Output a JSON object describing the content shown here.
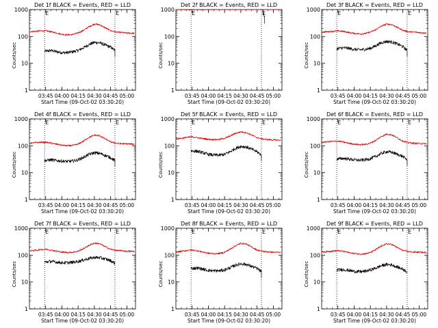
{
  "figure": {
    "ylabel": "Counts/sec",
    "xlabel": "Start Time (09-Oct-02 03:30:20)",
    "y_ticks": [
      "1",
      "10",
      "100",
      "1000"
    ],
    "x_ticks": [
      "03:45",
      "04:00",
      "04:15",
      "04:30",
      "04:45",
      "05:00"
    ],
    "marker_labels": [
      "E",
      "E"
    ],
    "colors": {
      "events": "#000000",
      "lld": "#e00000"
    }
  },
  "chart_data": [
    {
      "type": "line",
      "title": "Det 1f BLACK = Events, RED = LLD",
      "ylabel": "Counts/sec",
      "xlabel": "Start Time (09-Oct-02 03:30:20)",
      "y_scale": "log",
      "ylim": [
        1,
        1000
      ],
      "x_ticks": [
        "03:45",
        "04:00",
        "04:15",
        "04:30",
        "04:45",
        "05:00"
      ],
      "markers": [
        "03:44",
        "04:49"
      ],
      "series": [
        {
          "name": "Events",
          "color": "#000000",
          "x": [
            "03:44",
            "03:50",
            "03:55",
            "04:00",
            "04:05",
            "04:10",
            "04:15",
            "04:20",
            "04:25",
            "04:30",
            "04:35",
            "04:40",
            "04:45",
            "04:49"
          ],
          "values": [
            28,
            30,
            27,
            25,
            25,
            27,
            30,
            38,
            50,
            60,
            58,
            48,
            40,
            30
          ]
        },
        {
          "name": "LLD",
          "color": "#e00000",
          "x": [
            "03:30",
            "03:35",
            "03:40",
            "03:45",
            "03:50",
            "03:55",
            "04:00",
            "04:05",
            "04:10",
            "04:15",
            "04:20",
            "04:25",
            "04:30",
            "04:35",
            "04:40",
            "04:45",
            "04:50",
            "04:55",
            "05:00",
            "05:07"
          ],
          "values": [
            150,
            155,
            160,
            162,
            150,
            135,
            120,
            115,
            118,
            135,
            170,
            230,
            290,
            270,
            210,
            165,
            145,
            140,
            135,
            130
          ]
        }
      ]
    },
    {
      "type": "line",
      "title": "Det 2f BLACK = Events, RED = LLD",
      "ylabel": "Counts/sec",
      "xlabel": "Start Time (09-Oct-02 03:30:20)",
      "y_scale": "log",
      "ylim": [
        1,
        1000
      ],
      "x_ticks": [
        "03:45",
        "04:00",
        "04:15",
        "04:30",
        "04:45",
        "05:00"
      ],
      "markers": [
        "03:44",
        "04:49"
      ],
      "series": [
        {
          "name": "Events",
          "color": "#000000",
          "x": [
            "03:30",
            "03:40",
            "03:50",
            "04:00",
            "04:10",
            "04:20",
            "04:30",
            "04:40",
            "04:45",
            "04:50",
            "04:52"
          ],
          "values": [
            1100,
            1080,
            1100,
            1120,
            1140,
            1160,
            1180,
            1200,
            1180,
            1150,
            500
          ]
        },
        {
          "name": "LLD",
          "color": "#e00000",
          "x": [
            "03:30",
            "03:40",
            "03:50",
            "04:00",
            "04:10",
            "04:20",
            "04:30",
            "04:40",
            "04:50",
            "05:00",
            "05:07"
          ],
          "values": [
            1150,
            1150,
            1160,
            1170,
            1180,
            1190,
            1200,
            1200,
            1200,
            1200,
            1200
          ]
        }
      ]
    },
    {
      "type": "line",
      "title": "Det 3f BLACK = Events, RED = LLD",
      "ylabel": "Counts/sec",
      "xlabel": "Start Time (09-Oct-02 03:30:20)",
      "y_scale": "log",
      "ylim": [
        1,
        1000
      ],
      "x_ticks": [
        "03:45",
        "04:00",
        "04:15",
        "04:30",
        "04:45",
        "05:00"
      ],
      "markers": [
        "03:44",
        "04:49"
      ],
      "series": [
        {
          "name": "Events",
          "color": "#000000",
          "x": [
            "03:44",
            "03:50",
            "03:55",
            "04:00",
            "04:05",
            "04:10",
            "04:15",
            "04:20",
            "04:25",
            "04:30",
            "04:35",
            "04:40",
            "04:45",
            "04:49"
          ],
          "values": [
            35,
            38,
            36,
            33,
            32,
            33,
            36,
            45,
            58,
            65,
            62,
            52,
            42,
            30
          ]
        },
        {
          "name": "LLD",
          "color": "#e00000",
          "x": [
            "03:30",
            "03:35",
            "03:40",
            "03:45",
            "03:50",
            "03:55",
            "04:00",
            "04:05",
            "04:10",
            "04:15",
            "04:20",
            "04:25",
            "04:30",
            "04:35",
            "04:40",
            "04:45",
            "04:50",
            "04:55",
            "05:00",
            "05:07"
          ],
          "values": [
            145,
            150,
            155,
            160,
            155,
            140,
            130,
            125,
            128,
            145,
            180,
            240,
            290,
            275,
            215,
            170,
            150,
            145,
            140,
            135
          ]
        }
      ]
    },
    {
      "type": "line",
      "title": "Det 4f BLACK = Events, RED = LLD",
      "ylabel": "Counts/sec",
      "xlabel": "Start Time (09-Oct-02 03:30:20)",
      "y_scale": "log",
      "ylim": [
        1,
        1000
      ],
      "x_ticks": [
        "03:45",
        "04:00",
        "04:15",
        "04:30",
        "04:45",
        "05:00"
      ],
      "markers": [
        "03:44",
        "04:49"
      ],
      "series": [
        {
          "name": "Events",
          "color": "#000000",
          "x": [
            "03:44",
            "03:50",
            "03:55",
            "04:00",
            "04:05",
            "04:10",
            "04:15",
            "04:20",
            "04:25",
            "04:30",
            "04:35",
            "04:40",
            "04:45",
            "04:49"
          ],
          "values": [
            28,
            30,
            28,
            27,
            26,
            27,
            30,
            37,
            48,
            55,
            52,
            44,
            36,
            28
          ]
        },
        {
          "name": "LLD",
          "color": "#e00000",
          "x": [
            "03:30",
            "03:35",
            "03:40",
            "03:45",
            "03:50",
            "03:55",
            "04:00",
            "04:05",
            "04:10",
            "04:15",
            "04:20",
            "04:25",
            "04:30",
            "04:35",
            "04:40",
            "04:45",
            "04:50",
            "04:55",
            "05:00",
            "05:07"
          ],
          "values": [
            125,
            130,
            135,
            135,
            125,
            115,
            105,
            100,
            103,
            115,
            150,
            205,
            250,
            235,
            180,
            140,
            125,
            120,
            118,
            115
          ]
        }
      ]
    },
    {
      "type": "line",
      "title": "Det 5f BLACK = Events, RED = LLD",
      "ylabel": "Counts/sec",
      "xlabel": "Start Time (09-Oct-02 03:30:20)",
      "y_scale": "log",
      "ylim": [
        1,
        1000
      ],
      "x_ticks": [
        "03:45",
        "04:00",
        "04:15",
        "04:30",
        "04:45",
        "05:00"
      ],
      "markers": [
        "03:44",
        "04:49"
      ],
      "series": [
        {
          "name": "Events",
          "color": "#000000",
          "x": [
            "03:44",
            "03:50",
            "03:55",
            "04:00",
            "04:05",
            "04:10",
            "04:15",
            "04:20",
            "04:25",
            "04:30",
            "04:35",
            "04:40",
            "04:45",
            "04:49"
          ],
          "values": [
            65,
            62,
            55,
            48,
            45,
            45,
            48,
            60,
            80,
            95,
            90,
            75,
            60,
            45
          ]
        },
        {
          "name": "LLD",
          "color": "#e00000",
          "x": [
            "03:30",
            "03:35",
            "03:40",
            "03:45",
            "03:50",
            "03:55",
            "04:00",
            "04:05",
            "04:10",
            "04:15",
            "04:20",
            "04:25",
            "04:30",
            "04:35",
            "04:40",
            "04:45",
            "04:50",
            "04:55",
            "05:00",
            "05:07"
          ],
          "values": [
            180,
            190,
            205,
            215,
            200,
            185,
            175,
            170,
            172,
            190,
            230,
            290,
            330,
            310,
            250,
            200,
            180,
            170,
            165,
            160
          ]
        }
      ]
    },
    {
      "type": "line",
      "title": "Det 6f BLACK = Events, RED = LLD",
      "ylabel": "Counts/sec",
      "xlabel": "Start Time (09-Oct-02 03:30:20)",
      "y_scale": "log",
      "ylim": [
        1,
        1000
      ],
      "x_ticks": [
        "03:45",
        "04:00",
        "04:15",
        "04:30",
        "04:45",
        "05:00"
      ],
      "markers": [
        "03:44",
        "04:49"
      ],
      "series": [
        {
          "name": "Events",
          "color": "#000000",
          "x": [
            "03:44",
            "03:50",
            "03:55",
            "04:00",
            "04:05",
            "04:10",
            "04:15",
            "04:20",
            "04:25",
            "04:30",
            "04:35",
            "04:40",
            "04:45",
            "04:49"
          ],
          "values": [
            32,
            34,
            32,
            30,
            29,
            30,
            33,
            40,
            52,
            60,
            57,
            48,
            40,
            30
          ]
        },
        {
          "name": "LLD",
          "color": "#e00000",
          "x": [
            "03:30",
            "03:35",
            "03:40",
            "03:45",
            "03:50",
            "03:55",
            "04:00",
            "04:05",
            "04:10",
            "04:15",
            "04:20",
            "04:25",
            "04:30",
            "04:35",
            "04:40",
            "04:45",
            "04:50",
            "04:55",
            "05:00",
            "05:07"
          ],
          "values": [
            135,
            140,
            145,
            148,
            138,
            125,
            115,
            110,
            112,
            125,
            160,
            220,
            270,
            255,
            195,
            150,
            130,
            125,
            122,
            120
          ]
        }
      ]
    },
    {
      "type": "line",
      "title": "Det 7f BLACK = Events, RED = LLD",
      "ylabel": "Counts/sec",
      "xlabel": "Start Time (09-Oct-02 03:30:20)",
      "y_scale": "log",
      "ylim": [
        1,
        1000
      ],
      "x_ticks": [
        "03:45",
        "04:00",
        "04:15",
        "04:30",
        "04:45",
        "05:00"
      ],
      "markers": [
        "03:44",
        "04:49"
      ],
      "series": [
        {
          "name": "Events",
          "color": "#000000",
          "x": [
            "03:44",
            "03:50",
            "03:55",
            "04:00",
            "04:05",
            "04:10",
            "04:15",
            "04:20",
            "04:25",
            "04:30",
            "04:35",
            "04:40",
            "04:45",
            "04:49"
          ],
          "values": [
            55,
            58,
            55,
            52,
            52,
            54,
            58,
            66,
            75,
            82,
            80,
            72,
            62,
            50
          ]
        },
        {
          "name": "LLD",
          "color": "#e00000",
          "x": [
            "03:30",
            "03:35",
            "03:40",
            "03:45",
            "03:50",
            "03:55",
            "04:00",
            "04:05",
            "04:10",
            "04:15",
            "04:20",
            "04:25",
            "04:30",
            "04:35",
            "04:40",
            "04:45",
            "04:50",
            "04:55",
            "05:00",
            "05:07"
          ],
          "values": [
            145,
            150,
            160,
            165,
            155,
            140,
            130,
            125,
            128,
            140,
            175,
            230,
            280,
            265,
            205,
            165,
            150,
            145,
            140,
            138
          ]
        }
      ]
    },
    {
      "type": "line",
      "title": "Det 8f BLACK = Events, RED = LLD",
      "ylabel": "Counts/sec",
      "xlabel": "Start Time (09-Oct-02 03:30:20)",
      "y_scale": "log",
      "ylim": [
        1,
        1000
      ],
      "x_ticks": [
        "03:45",
        "04:00",
        "04:15",
        "04:30",
        "04:45",
        "05:00"
      ],
      "markers": [
        "03:44",
        "04:49"
      ],
      "series": [
        {
          "name": "Events",
          "color": "#000000",
          "x": [
            "03:44",
            "03:50",
            "03:55",
            "04:00",
            "04:05",
            "04:10",
            "04:15",
            "04:20",
            "04:25",
            "04:30",
            "04:35",
            "04:40",
            "04:45",
            "04:49"
          ],
          "values": [
            32,
            33,
            30,
            27,
            26,
            26,
            28,
            34,
            42,
            48,
            45,
            38,
            32,
            24
          ]
        },
        {
          "name": "LLD",
          "color": "#e00000",
          "x": [
            "03:30",
            "03:35",
            "03:40",
            "03:45",
            "03:50",
            "03:55",
            "04:00",
            "04:05",
            "04:10",
            "04:15",
            "04:20",
            "04:25",
            "04:30",
            "04:35",
            "04:40",
            "04:45",
            "04:50",
            "04:55",
            "05:00",
            "05:07"
          ],
          "values": [
            130,
            138,
            148,
            155,
            145,
            130,
            118,
            112,
            115,
            128,
            165,
            225,
            275,
            260,
            200,
            155,
            138,
            132,
            128,
            125
          ]
        }
      ]
    },
    {
      "type": "line",
      "title": "Det 9f BLACK = Events, RED = LLD",
      "ylabel": "Counts/sec",
      "xlabel": "Start Time (09-Oct-02 03:30:20)",
      "y_scale": "log",
      "ylim": [
        1,
        1000
      ],
      "x_ticks": [
        "03:45",
        "04:00",
        "04:15",
        "04:30",
        "04:45",
        "05:00"
      ],
      "markers": [
        "03:44",
        "04:49"
      ],
      "series": [
        {
          "name": "Events",
          "color": "#000000",
          "x": [
            "03:44",
            "03:50",
            "03:55",
            "04:00",
            "04:05",
            "04:10",
            "04:15",
            "04:20",
            "04:25",
            "04:30",
            "04:35",
            "04:40",
            "04:45",
            "04:49"
          ],
          "values": [
            28,
            29,
            27,
            25,
            24,
            25,
            28,
            33,
            40,
            45,
            43,
            36,
            30,
            24
          ]
        },
        {
          "name": "LLD",
          "color": "#e00000",
          "x": [
            "03:30",
            "03:35",
            "03:40",
            "03:45",
            "03:50",
            "03:55",
            "04:00",
            "04:05",
            "04:10",
            "04:15",
            "04:20",
            "04:25",
            "04:30",
            "04:35",
            "04:40",
            "04:45",
            "04:50",
            "04:55",
            "05:00",
            "05:07"
          ],
          "values": [
            130,
            135,
            142,
            145,
            138,
            125,
            115,
            110,
            112,
            125,
            160,
            215,
            262,
            248,
            190,
            150,
            135,
            130,
            128,
            125
          ]
        }
      ]
    }
  ]
}
